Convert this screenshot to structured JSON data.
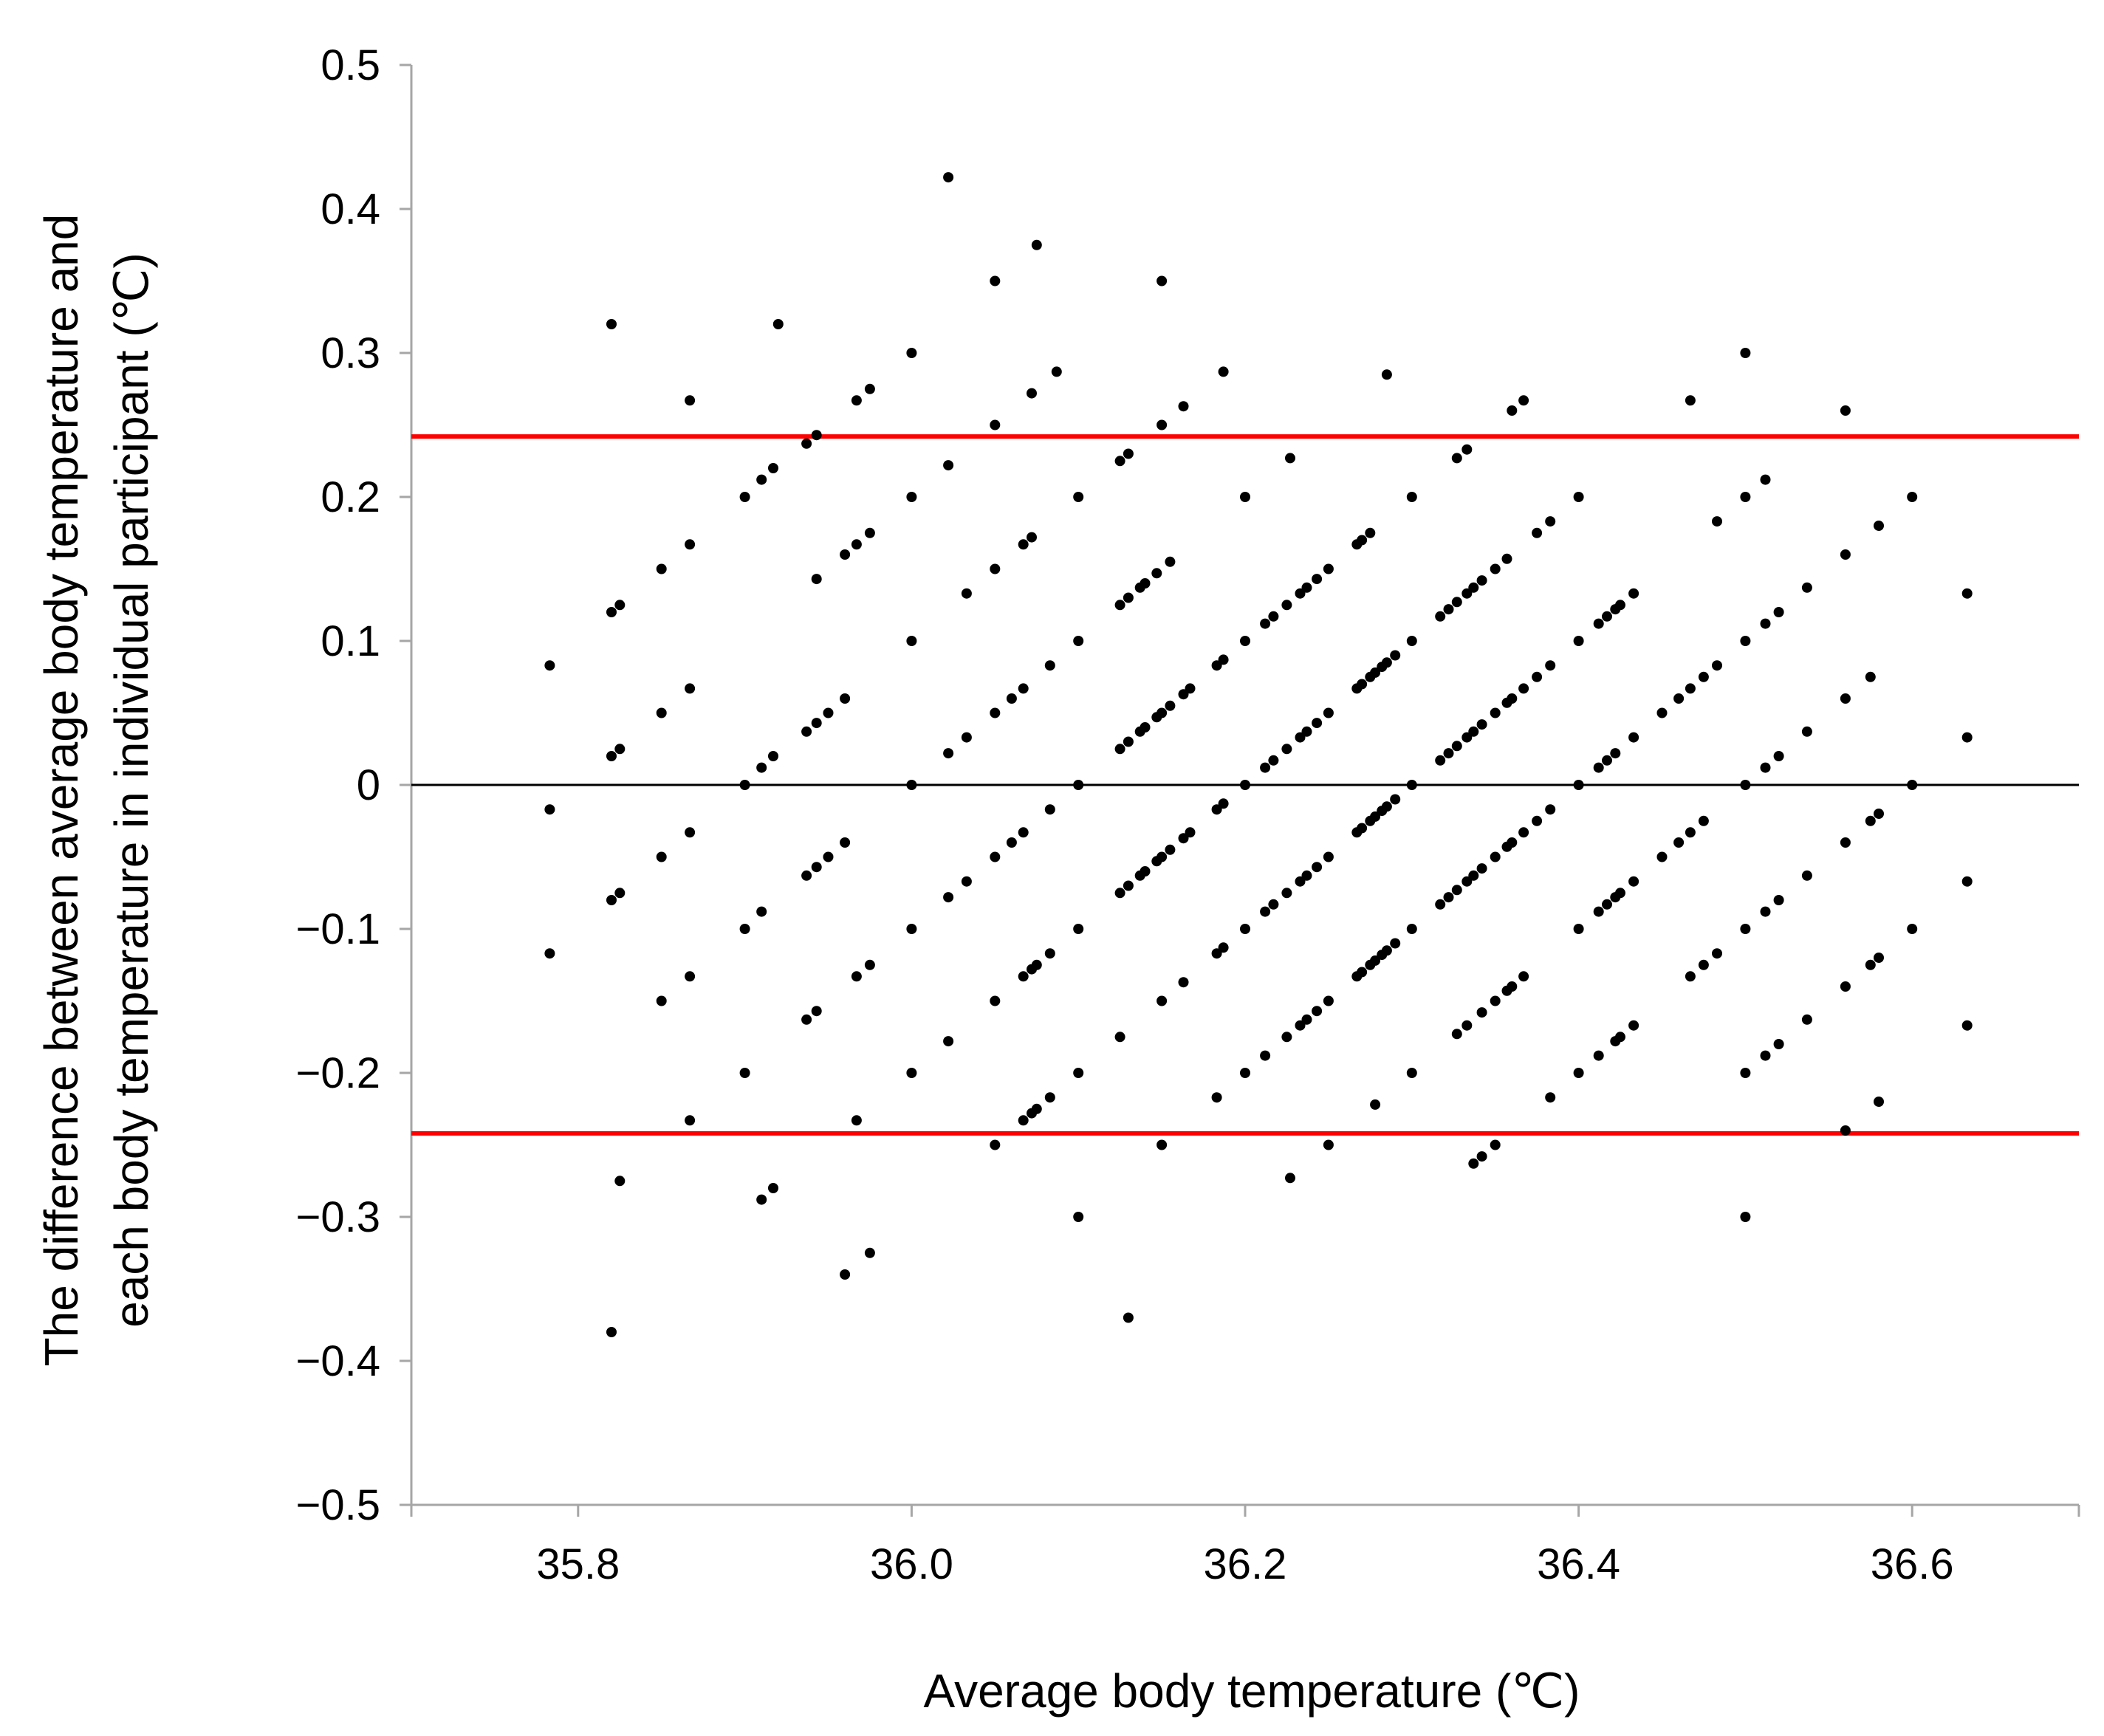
{
  "chart_data": {
    "type": "scatter",
    "title": "",
    "xlabel": "Average body temperature (℃)",
    "ylabel_line1": "The difference between average body temperature and",
    "ylabel_line2": "each body temperature in individual participant (℃)",
    "xlim": [
      35.7,
      36.7
    ],
    "ylim": [
      -0.5,
      0.5
    ],
    "x_ticks": [
      35.8,
      36.0,
      36.2,
      36.4,
      36.6
    ],
    "x_tick_labels": [
      "35.8",
      "36.0",
      "36.2",
      "36.4",
      "36.6"
    ],
    "y_ticks": [
      0.5,
      0.4,
      0.3,
      0.2,
      0.1,
      0,
      -0.1,
      -0.2,
      -0.3,
      -0.4,
      -0.5
    ],
    "y_tick_labels": [
      "0.5",
      "0.4",
      "0.3",
      "0.2",
      "0.1",
      "0",
      "−0.1",
      "−0.2",
      "−0.3",
      "−0.4",
      "−0.5"
    ],
    "reference_lines": [
      {
        "name": "upper-limit",
        "y": 0.242,
        "color": "#ff0000"
      },
      {
        "name": "zero-line",
        "y": 0,
        "color": "#000000"
      },
      {
        "name": "lower-limit",
        "y": -0.242,
        "color": "#ff0000"
      }
    ],
    "axis_color": "#a6a6a6",
    "point_color": "#000000",
    "points": [
      [
        35.783,
        0.083
      ],
      [
        35.783,
        -0.017
      ],
      [
        35.783,
        -0.117
      ],
      [
        35.82,
        0.32
      ],
      [
        35.82,
        0.12
      ],
      [
        35.825,
        0.125
      ],
      [
        35.82,
        0.02
      ],
      [
        35.825,
        0.025
      ],
      [
        35.82,
        -0.08
      ],
      [
        35.825,
        -0.075
      ],
      [
        35.825,
        -0.275
      ],
      [
        35.82,
        -0.38
      ],
      [
        35.85,
        0.15
      ],
      [
        35.85,
        0.05
      ],
      [
        35.85,
        -0.05
      ],
      [
        35.85,
        -0.15
      ],
      [
        35.867,
        0.267
      ],
      [
        35.867,
        0.167
      ],
      [
        35.867,
        0.067
      ],
      [
        35.867,
        -0.033
      ],
      [
        35.867,
        -0.133
      ],
      [
        35.867,
        -0.233
      ],
      [
        35.9,
        0.2
      ],
      [
        35.9,
        0.0
      ],
      [
        35.9,
        -0.1
      ],
      [
        35.9,
        -0.2
      ],
      [
        35.91,
        0.212
      ],
      [
        35.91,
        0.012
      ],
      [
        35.91,
        -0.088
      ],
      [
        35.91,
        -0.288
      ],
      [
        35.92,
        0.32
      ],
      [
        35.917,
        0.22
      ],
      [
        35.917,
        0.02
      ],
      [
        35.917,
        -0.28
      ],
      [
        35.937,
        0.237
      ],
      [
        35.937,
        0.037
      ],
      [
        35.937,
        -0.063
      ],
      [
        35.937,
        -0.163
      ],
      [
        35.943,
        0.243
      ],
      [
        35.943,
        0.143
      ],
      [
        35.943,
        0.043
      ],
      [
        35.943,
        -0.057
      ],
      [
        35.943,
        -0.157
      ],
      [
        35.95,
        0.05
      ],
      [
        35.95,
        -0.05
      ],
      [
        35.96,
        0.16
      ],
      [
        35.96,
        0.06
      ],
      [
        35.96,
        -0.04
      ],
      [
        35.96,
        -0.34
      ],
      [
        35.967,
        0.267
      ],
      [
        35.967,
        0.167
      ],
      [
        35.967,
        -0.133
      ],
      [
        35.967,
        -0.233
      ],
      [
        35.975,
        0.275
      ],
      [
        35.975,
        0.175
      ],
      [
        35.975,
        -0.125
      ],
      [
        35.975,
        -0.325
      ],
      [
        36.0,
        0.3
      ],
      [
        36.0,
        0.2
      ],
      [
        36.0,
        0.1
      ],
      [
        36.0,
        0.0
      ],
      [
        36.0,
        -0.1
      ],
      [
        36.0,
        -0.2
      ],
      [
        36.022,
        0.422
      ],
      [
        36.022,
        0.222
      ],
      [
        36.022,
        0.022
      ],
      [
        36.022,
        -0.078
      ],
      [
        36.022,
        -0.178
      ],
      [
        36.033,
        0.133
      ],
      [
        36.033,
        0.033
      ],
      [
        36.033,
        -0.067
      ],
      [
        36.05,
        0.35
      ],
      [
        36.05,
        0.25
      ],
      [
        36.05,
        0.15
      ],
      [
        36.05,
        0.05
      ],
      [
        36.05,
        -0.05
      ],
      [
        36.05,
        -0.15
      ],
      [
        36.05,
        -0.25
      ],
      [
        36.06,
        0.06
      ],
      [
        36.06,
        -0.04
      ],
      [
        36.067,
        0.167
      ],
      [
        36.067,
        0.067
      ],
      [
        36.067,
        -0.033
      ],
      [
        36.067,
        -0.133
      ],
      [
        36.067,
        -0.233
      ],
      [
        36.072,
        0.272
      ],
      [
        36.072,
        0.172
      ],
      [
        36.072,
        -0.128
      ],
      [
        36.072,
        -0.228
      ],
      [
        36.075,
        0.375
      ],
      [
        36.075,
        -0.125
      ],
      [
        36.075,
        -0.225
      ],
      [
        36.083,
        0.083
      ],
      [
        36.083,
        -0.017
      ],
      [
        36.083,
        -0.117
      ],
      [
        36.083,
        -0.217
      ],
      [
        36.087,
        0.287
      ],
      [
        36.1,
        0.2
      ],
      [
        36.1,
        0.1
      ],
      [
        36.1,
        0.0
      ],
      [
        36.1,
        -0.1
      ],
      [
        36.1,
        -0.2
      ],
      [
        36.1,
        -0.3
      ],
      [
        36.125,
        0.225
      ],
      [
        36.125,
        0.125
      ],
      [
        36.125,
        0.025
      ],
      [
        36.125,
        -0.075
      ],
      [
        36.125,
        -0.175
      ],
      [
        36.13,
        0.23
      ],
      [
        36.13,
        0.13
      ],
      [
        36.13,
        0.03
      ],
      [
        36.13,
        -0.07
      ],
      [
        36.13,
        -0.37
      ],
      [
        36.137,
        0.137
      ],
      [
        36.137,
        0.037
      ],
      [
        36.137,
        -0.063
      ],
      [
        36.14,
        0.14
      ],
      [
        36.14,
        0.04
      ],
      [
        36.14,
        -0.06
      ],
      [
        36.147,
        0.147
      ],
      [
        36.147,
        0.047
      ],
      [
        36.147,
        -0.053
      ],
      [
        36.15,
        0.35
      ],
      [
        36.15,
        0.25
      ],
      [
        36.15,
        0.05
      ],
      [
        36.15,
        -0.05
      ],
      [
        36.15,
        -0.15
      ],
      [
        36.15,
        -0.25
      ],
      [
        36.155,
        0.155
      ],
      [
        36.155,
        0.055
      ],
      [
        36.155,
        -0.045
      ],
      [
        36.163,
        0.263
      ],
      [
        36.163,
        0.063
      ],
      [
        36.163,
        -0.037
      ],
      [
        36.163,
        -0.137
      ],
      [
        36.167,
        0.067
      ],
      [
        36.167,
        -0.033
      ],
      [
        36.183,
        0.083
      ],
      [
        36.183,
        -0.017
      ],
      [
        36.183,
        -0.117
      ],
      [
        36.183,
        -0.217
      ],
      [
        36.187,
        0.287
      ],
      [
        36.187,
        0.087
      ],
      [
        36.187,
        -0.013
      ],
      [
        36.187,
        -0.113
      ],
      [
        36.2,
        0.2
      ],
      [
        36.2,
        0.1
      ],
      [
        36.2,
        0.0
      ],
      [
        36.2,
        -0.1
      ],
      [
        36.2,
        -0.2
      ],
      [
        36.212,
        0.112
      ],
      [
        36.212,
        0.012
      ],
      [
        36.212,
        -0.088
      ],
      [
        36.212,
        -0.188
      ],
      [
        36.217,
        0.117
      ],
      [
        36.217,
        0.017
      ],
      [
        36.217,
        -0.083
      ],
      [
        36.225,
        0.125
      ],
      [
        36.225,
        0.025
      ],
      [
        36.225,
        -0.075
      ],
      [
        36.225,
        -0.175
      ],
      [
        36.227,
        0.227
      ],
      [
        36.227,
        -0.273
      ],
      [
        36.233,
        0.133
      ],
      [
        36.233,
        0.033
      ],
      [
        36.233,
        -0.067
      ],
      [
        36.233,
        -0.167
      ],
      [
        36.237,
        0.137
      ],
      [
        36.237,
        0.037
      ],
      [
        36.237,
        -0.063
      ],
      [
        36.237,
        -0.163
      ],
      [
        36.243,
        0.143
      ],
      [
        36.243,
        0.043
      ],
      [
        36.243,
        -0.057
      ],
      [
        36.243,
        -0.157
      ],
      [
        36.25,
        0.15
      ],
      [
        36.25,
        0.05
      ],
      [
        36.25,
        -0.05
      ],
      [
        36.25,
        -0.15
      ],
      [
        36.25,
        -0.25
      ],
      [
        36.267,
        0.167
      ],
      [
        36.267,
        0.067
      ],
      [
        36.267,
        -0.033
      ],
      [
        36.267,
        -0.133
      ],
      [
        36.27,
        0.17
      ],
      [
        36.27,
        0.07
      ],
      [
        36.27,
        -0.03
      ],
      [
        36.27,
        -0.13
      ],
      [
        36.275,
        0.175
      ],
      [
        36.275,
        0.075
      ],
      [
        36.275,
        -0.025
      ],
      [
        36.275,
        -0.125
      ],
      [
        36.278,
        0.078
      ],
      [
        36.278,
        -0.022
      ],
      [
        36.278,
        -0.122
      ],
      [
        36.278,
        -0.222
      ],
      [
        36.282,
        0.082
      ],
      [
        36.282,
        -0.018
      ],
      [
        36.282,
        -0.118
      ],
      [
        36.285,
        0.285
      ],
      [
        36.285,
        0.085
      ],
      [
        36.285,
        -0.015
      ],
      [
        36.285,
        -0.115
      ],
      [
        36.29,
        0.09
      ],
      [
        36.29,
        -0.01
      ],
      [
        36.29,
        -0.11
      ],
      [
        36.3,
        0.2
      ],
      [
        36.3,
        0.1
      ],
      [
        36.3,
        0.0
      ],
      [
        36.3,
        -0.1
      ],
      [
        36.3,
        -0.2
      ],
      [
        36.317,
        0.117
      ],
      [
        36.317,
        0.017
      ],
      [
        36.317,
        -0.083
      ],
      [
        36.322,
        0.122
      ],
      [
        36.322,
        0.022
      ],
      [
        36.322,
        -0.078
      ],
      [
        36.327,
        0.227
      ],
      [
        36.327,
        0.127
      ],
      [
        36.327,
        0.027
      ],
      [
        36.327,
        -0.073
      ],
      [
        36.327,
        -0.173
      ],
      [
        36.333,
        0.233
      ],
      [
        36.333,
        0.133
      ],
      [
        36.333,
        0.033
      ],
      [
        36.333,
        -0.067
      ],
      [
        36.333,
        -0.167
      ],
      [
        36.337,
        0.137
      ],
      [
        36.337,
        0.037
      ],
      [
        36.337,
        -0.063
      ],
      [
        36.337,
        -0.263
      ],
      [
        36.342,
        0.142
      ],
      [
        36.342,
        0.042
      ],
      [
        36.342,
        -0.058
      ],
      [
        36.342,
        -0.158
      ],
      [
        36.342,
        -0.258
      ],
      [
        36.35,
        0.15
      ],
      [
        36.35,
        0.05
      ],
      [
        36.35,
        -0.05
      ],
      [
        36.35,
        -0.15
      ],
      [
        36.35,
        -0.25
      ],
      [
        36.357,
        0.157
      ],
      [
        36.357,
        0.057
      ],
      [
        36.357,
        -0.043
      ],
      [
        36.357,
        -0.143
      ],
      [
        36.36,
        0.26
      ],
      [
        36.36,
        0.06
      ],
      [
        36.36,
        -0.04
      ],
      [
        36.36,
        -0.14
      ],
      [
        36.367,
        0.267
      ],
      [
        36.367,
        0.067
      ],
      [
        36.367,
        -0.033
      ],
      [
        36.367,
        -0.133
      ],
      [
        36.375,
        0.175
      ],
      [
        36.375,
        0.075
      ],
      [
        36.375,
        -0.025
      ],
      [
        36.383,
        0.183
      ],
      [
        36.383,
        0.083
      ],
      [
        36.383,
        -0.017
      ],
      [
        36.383,
        -0.217
      ],
      [
        36.4,
        0.2
      ],
      [
        36.4,
        0.1
      ],
      [
        36.4,
        0.0
      ],
      [
        36.4,
        -0.1
      ],
      [
        36.4,
        -0.2
      ],
      [
        36.412,
        0.112
      ],
      [
        36.412,
        0.012
      ],
      [
        36.412,
        -0.088
      ],
      [
        36.412,
        -0.188
      ],
      [
        36.417,
        0.117
      ],
      [
        36.417,
        0.017
      ],
      [
        36.417,
        -0.083
      ],
      [
        36.422,
        0.122
      ],
      [
        36.422,
        0.022
      ],
      [
        36.422,
        -0.078
      ],
      [
        36.422,
        -0.178
      ],
      [
        36.425,
        0.125
      ],
      [
        36.425,
        -0.075
      ],
      [
        36.425,
        -0.175
      ],
      [
        36.433,
        0.133
      ],
      [
        36.433,
        0.033
      ],
      [
        36.433,
        -0.067
      ],
      [
        36.433,
        -0.167
      ],
      [
        36.45,
        0.05
      ],
      [
        36.45,
        -0.05
      ],
      [
        36.46,
        0.06
      ],
      [
        36.46,
        -0.04
      ],
      [
        36.467,
        0.267
      ],
      [
        36.467,
        0.067
      ],
      [
        36.467,
        -0.033
      ],
      [
        36.467,
        -0.133
      ],
      [
        36.475,
        0.075
      ],
      [
        36.475,
        -0.025
      ],
      [
        36.475,
        -0.125
      ],
      [
        36.483,
        0.183
      ],
      [
        36.483,
        0.083
      ],
      [
        36.483,
        -0.117
      ],
      [
        36.5,
        0.3
      ],
      [
        36.5,
        0.2
      ],
      [
        36.5,
        0.1
      ],
      [
        36.5,
        0.0
      ],
      [
        36.5,
        -0.1
      ],
      [
        36.5,
        -0.2
      ],
      [
        36.5,
        -0.3
      ],
      [
        36.512,
        0.212
      ],
      [
        36.512,
        0.112
      ],
      [
        36.512,
        0.012
      ],
      [
        36.512,
        -0.088
      ],
      [
        36.512,
        -0.188
      ],
      [
        36.52,
        0.12
      ],
      [
        36.52,
        0.02
      ],
      [
        36.52,
        -0.08
      ],
      [
        36.52,
        -0.18
      ],
      [
        36.537,
        0.137
      ],
      [
        36.537,
        0.037
      ],
      [
        36.537,
        -0.063
      ],
      [
        36.537,
        -0.163
      ],
      [
        36.56,
        0.26
      ],
      [
        36.56,
        0.16
      ],
      [
        36.56,
        0.06
      ],
      [
        36.56,
        -0.04
      ],
      [
        36.56,
        -0.14
      ],
      [
        36.56,
        -0.24
      ],
      [
        36.575,
        0.075
      ],
      [
        36.575,
        -0.025
      ],
      [
        36.575,
        -0.125
      ],
      [
        36.58,
        0.18
      ],
      [
        36.58,
        -0.02
      ],
      [
        36.58,
        -0.12
      ],
      [
        36.58,
        -0.22
      ],
      [
        36.6,
        0.2
      ],
      [
        36.6,
        0.0
      ],
      [
        36.6,
        -0.1
      ],
      [
        36.633,
        0.133
      ],
      [
        36.633,
        0.033
      ],
      [
        36.633,
        -0.067
      ],
      [
        36.633,
        -0.167
      ]
    ]
  }
}
